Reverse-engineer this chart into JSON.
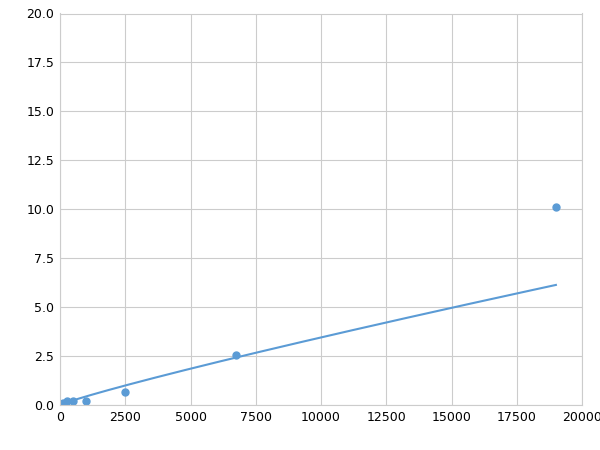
{
  "x": [
    125,
    250,
    500,
    1000,
    2500,
    6750,
    19000
  ],
  "y": [
    0.1,
    0.18,
    0.2,
    0.22,
    0.65,
    2.55,
    10.1
  ],
  "line_color": "#5b9bd5",
  "marker_color": "#5b9bd5",
  "marker_size": 5,
  "xlim": [
    0,
    20000
  ],
  "ylim": [
    0,
    20.0
  ],
  "xticks": [
    0,
    2500,
    5000,
    7500,
    10000,
    12500,
    15000,
    17500,
    20000
  ],
  "yticks": [
    0.0,
    2.5,
    5.0,
    7.5,
    10.0,
    12.5,
    15.0,
    17.5,
    20.0
  ],
  "grid_color": "#cccccc",
  "bg_color": "#ffffff",
  "fig_bg_color": "#ffffff",
  "linewidth": 1.5,
  "power_law_a": 3.5e-05,
  "power_law_b": 1.55
}
